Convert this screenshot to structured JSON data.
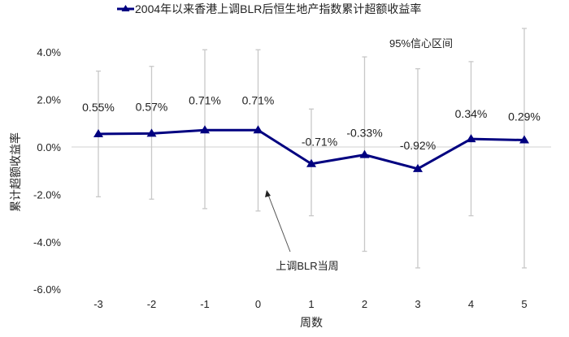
{
  "chart_data": {
    "type": "line",
    "title": "2004年以来香港上调BLR后恒生地产指数累计超额收益率",
    "xlabel": "周数",
    "ylabel": "累计超额收益率",
    "categories": [
      "-3",
      "-2",
      "-1",
      "0",
      "1",
      "2",
      "3",
      "4",
      "5"
    ],
    "x": [
      -3,
      -2,
      -1,
      0,
      1,
      2,
      3,
      4,
      5
    ],
    "series": [
      {
        "name": "2004年以来香港上调BLR后恒生地产指数累计超额收益率",
        "values": [
          0.55,
          0.57,
          0.71,
          0.71,
          -0.71,
          -0.33,
          -0.92,
          0.34,
          0.29
        ],
        "labels": [
          "0.55%",
          "0.57%",
          "0.71%",
          "0.71%",
          "-0.71%",
          "-0.33%",
          "-0.92%",
          "0.34%",
          "0.29%"
        ],
        "color": "#000080",
        "marker": "triangle"
      }
    ],
    "error_bars": {
      "name": "95%信心区间",
      "upper": [
        3.2,
        3.4,
        4.1,
        4.1,
        1.6,
        3.8,
        3.3,
        3.6,
        5.0
      ],
      "lower": [
        -2.1,
        -2.2,
        -2.6,
        -2.7,
        -2.9,
        -4.4,
        -5.1,
        -2.9,
        -5.1
      ],
      "color": "#c8c8c8"
    },
    "y_ticks": [
      "4.0%",
      "2.0%",
      "0.0%",
      "-2.0%",
      "-4.0%",
      "-6.0%"
    ],
    "y_tick_values": [
      4,
      2,
      0,
      -2,
      -4,
      -6
    ],
    "ylim": [
      -6,
      4
    ],
    "grid": false,
    "legend_position": "top",
    "annotations": [
      {
        "text": "95%信心区间"
      },
      {
        "text": "上调BLR当周",
        "arrow_to_x": 0
      }
    ]
  },
  "legend": {
    "label": "2004年以来香港上调BLR后恒生地产指数累计超额收益率"
  },
  "annotations": {
    "ci_label": "95%信心区间",
    "event_label": "上调BLR当周"
  },
  "axes": {
    "x_title": "周数",
    "y_title": "累计超额收益率"
  }
}
